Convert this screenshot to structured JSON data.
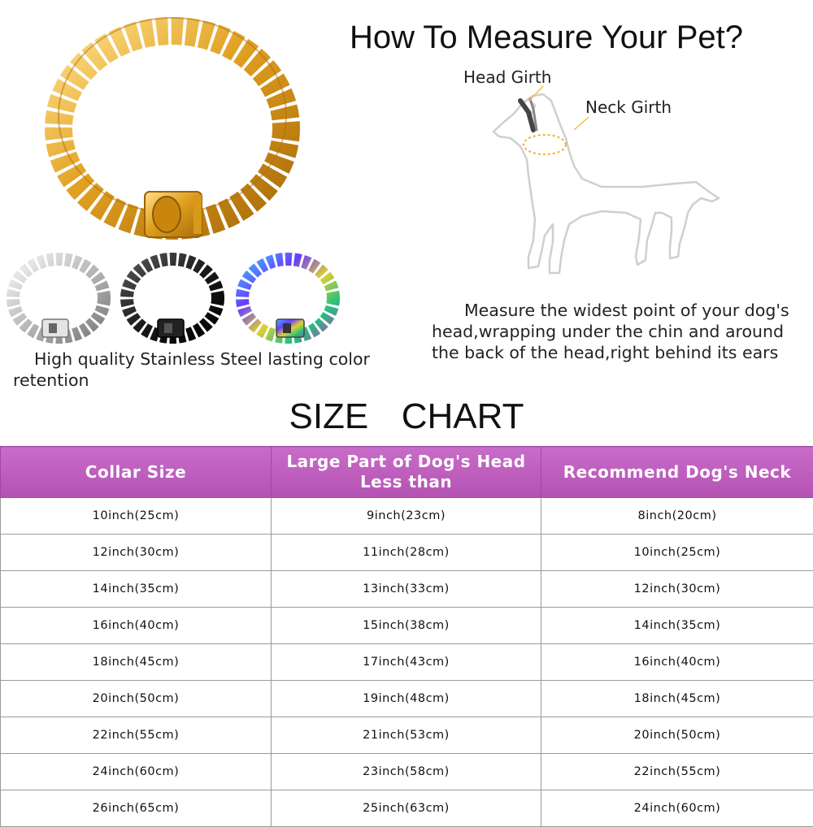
{
  "header": {
    "title": "How To Measure Your Pet?"
  },
  "diagram": {
    "head_girth_label": "Head Girth",
    "neck_girth_label": "Neck Girth",
    "measure_instruction": "Measure the widest point of your dog's head,wrapping under the chin and around the back of the head,right behind its ears"
  },
  "product": {
    "main_collar_color": "gold",
    "variants": [
      "silver",
      "black",
      "rainbow"
    ],
    "quality_text": "High quality Stainless Steel lasting color retention"
  },
  "size_chart": {
    "title": "SIZE  CHART",
    "header_color": "#b95ab9",
    "columns": [
      "Collar Size",
      "Large Part of Dog's Head Less than",
      "Recommend Dog's Neck"
    ],
    "rows": [
      [
        "10inch(25cm)",
        "9inch(23cm)",
        "8inch(20cm)"
      ],
      [
        "12inch(30cm)",
        "11inch(28cm)",
        "10inch(25cm)"
      ],
      [
        "14inch(35cm)",
        "13inch(33cm)",
        "12inch(30cm)"
      ],
      [
        "16inch(40cm)",
        "15inch(38cm)",
        "14inch(35cm)"
      ],
      [
        "18inch(45cm)",
        "17inch(43cm)",
        "16inch(40cm)"
      ],
      [
        "20inch(50cm)",
        "19inch(48cm)",
        "18inch(45cm)"
      ],
      [
        "22inch(55cm)",
        "21inch(53cm)",
        "20inch(50cm)"
      ],
      [
        "24inch(60cm)",
        "23inch(58cm)",
        "22inch(55cm)"
      ],
      [
        "26inch(65cm)",
        "25inch(63cm)",
        "24inch(60cm)"
      ]
    ]
  }
}
